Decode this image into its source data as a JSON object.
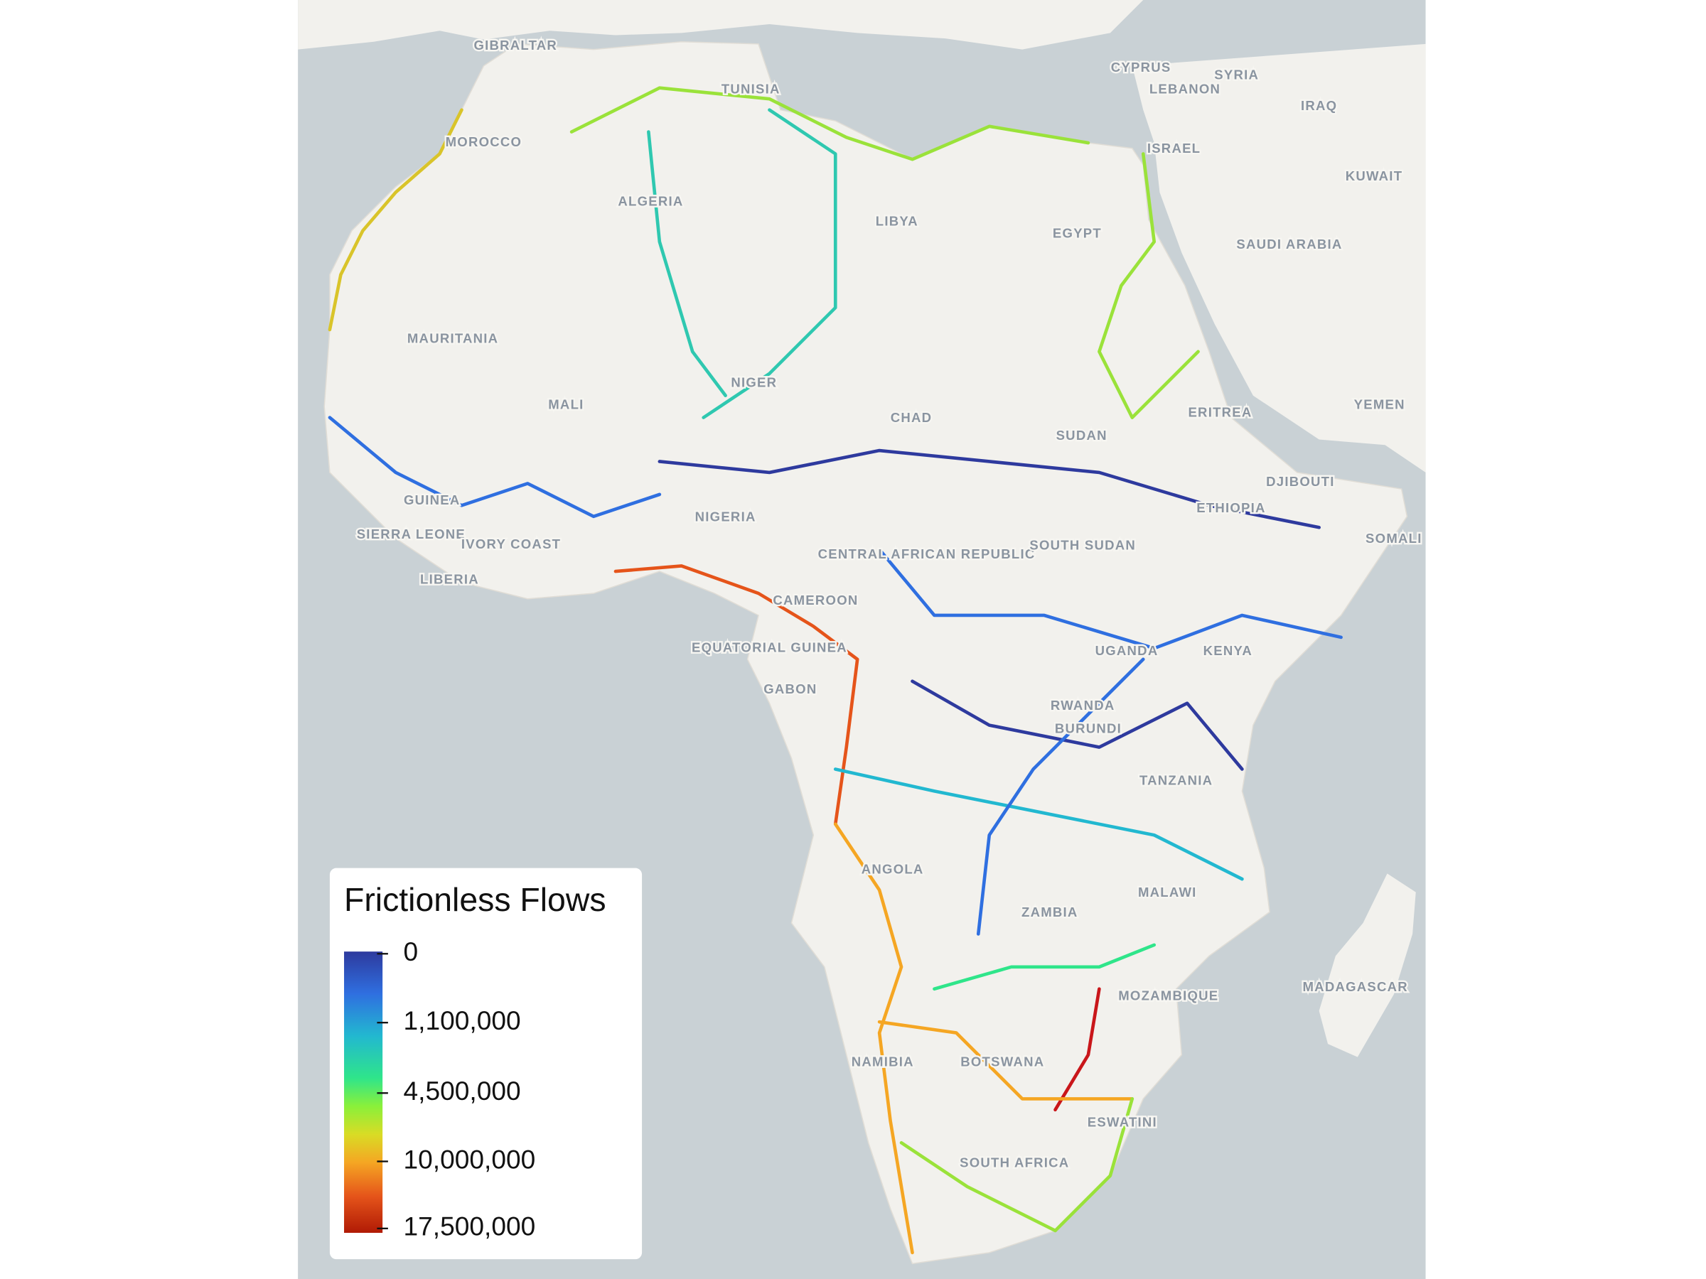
{
  "map": {
    "labels": [
      "GIBRALTAR",
      "CYPRUS",
      "LEBANON",
      "SYRIA",
      "IRAQ",
      "TUNISIA",
      "MOROCCO",
      "ISRAEL",
      "KUWAIT",
      "ALGERIA",
      "LIBYA",
      "EGYPT",
      "SAUDI ARABIA",
      "MAURITANIA",
      "MALI",
      "NIGER",
      "CHAD",
      "SUDAN",
      "ERITREA",
      "YEMEN",
      "DJIBOUTI",
      "ETHIOPIA",
      "SOMALI",
      "GUINEA",
      "SIERRA LEONE",
      "LIBERIA",
      "IVORY COAST",
      "NIGERIA",
      "CENTRAL AFRICAN REPUBLIC",
      "SOUTH SUDAN",
      "CAMEROON",
      "EQUATORIAL GUINEA",
      "GABON",
      "UGANDA",
      "KENYA",
      "RWANDA",
      "BURUNDI",
      "TANZANIA",
      "ANGOLA",
      "MALAWI",
      "ZAMBIA",
      "MOZAMBIQUE",
      "MADAGASCAR",
      "NAMIBIA",
      "BOTSWANA",
      "ESWATINI",
      "SOUTH AFRICA"
    ],
    "legend": {
      "title": "Frictionless Flows",
      "scale": "sqrt",
      "lim": [
        0,
        17500000
      ],
      "ticks": [
        0,
        {
          "value": 1100000,
          "label": "1,100,000"
        },
        {
          "value": 4500000,
          "label": "4,500,000"
        },
        {
          "value": 10000000,
          "label": "10,000,000"
        },
        {
          "value": 17500000,
          "label": "17,500,000"
        }
      ]
    }
  }
}
